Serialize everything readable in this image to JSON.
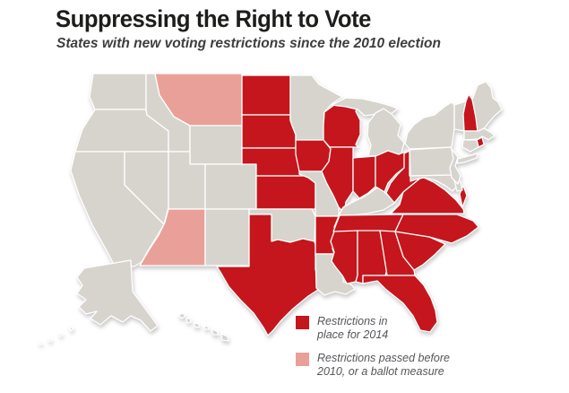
{
  "header": {
    "title": "Suppressing the Right to Vote",
    "subtitle": "States with new voting restrictions since the 2010 election"
  },
  "legend": {
    "items": [
      {
        "status": "restrictions_2014",
        "label_lines": [
          "Restrictions in",
          "place for 2014"
        ]
      },
      {
        "status": "passed_before_2010",
        "label_lines": [
          "Restrictions passed before",
          "2010, or a ballot measure"
        ]
      }
    ]
  },
  "colors": {
    "restrictions_2014": "#c5161d",
    "passed_before_2010": "#e9a098",
    "no_new_restrictions": "#d6d4cd",
    "state_border": "#ffffff",
    "background": "#ffffff",
    "title_text": "#1d1d1b",
    "subtitle_text": "#3e3e40",
    "legend_text": "#55565a"
  },
  "map": {
    "states": {
      "AL": {
        "name": "Alabama",
        "status": "restrictions_2014"
      },
      "AK": {
        "name": "Alaska",
        "status": "no_new_restrictions"
      },
      "AZ": {
        "name": "Arizona",
        "status": "passed_before_2010"
      },
      "AR": {
        "name": "Arkansas",
        "status": "restrictions_2014"
      },
      "CA": {
        "name": "California",
        "status": "no_new_restrictions"
      },
      "CO": {
        "name": "Colorado",
        "status": "no_new_restrictions"
      },
      "CT": {
        "name": "Connecticut",
        "status": "no_new_restrictions"
      },
      "DE": {
        "name": "Delaware",
        "status": "no_new_restrictions"
      },
      "FL": {
        "name": "Florida",
        "status": "restrictions_2014"
      },
      "GA": {
        "name": "Georgia",
        "status": "restrictions_2014"
      },
      "HI": {
        "name": "Hawaii",
        "status": "no_new_restrictions"
      },
      "ID": {
        "name": "Idaho",
        "status": "no_new_restrictions"
      },
      "IL": {
        "name": "Illinois",
        "status": "restrictions_2014"
      },
      "IN": {
        "name": "Indiana",
        "status": "restrictions_2014"
      },
      "IA": {
        "name": "Iowa",
        "status": "restrictions_2014"
      },
      "KS": {
        "name": "Kansas",
        "status": "restrictions_2014"
      },
      "KY": {
        "name": "Kentucky",
        "status": "no_new_restrictions"
      },
      "LA": {
        "name": "Louisiana",
        "status": "no_new_restrictions"
      },
      "ME": {
        "name": "Maine",
        "status": "no_new_restrictions"
      },
      "MD": {
        "name": "Maryland",
        "status": "no_new_restrictions"
      },
      "MA": {
        "name": "Massachusetts",
        "status": "no_new_restrictions"
      },
      "MI": {
        "name": "Michigan",
        "status": "no_new_restrictions"
      },
      "MN": {
        "name": "Minnesota",
        "status": "no_new_restrictions"
      },
      "MS": {
        "name": "Mississippi",
        "status": "restrictions_2014"
      },
      "MO": {
        "name": "Missouri",
        "status": "no_new_restrictions"
      },
      "MT": {
        "name": "Montana",
        "status": "passed_before_2010"
      },
      "NE": {
        "name": "Nebraska",
        "status": "restrictions_2014"
      },
      "NV": {
        "name": "Nevada",
        "status": "no_new_restrictions"
      },
      "NH": {
        "name": "New Hampshire",
        "status": "restrictions_2014"
      },
      "NJ": {
        "name": "New Jersey",
        "status": "no_new_restrictions"
      },
      "NM": {
        "name": "New Mexico",
        "status": "no_new_restrictions"
      },
      "NY": {
        "name": "New York",
        "status": "no_new_restrictions"
      },
      "NC": {
        "name": "North Carolina",
        "status": "restrictions_2014"
      },
      "ND": {
        "name": "North Dakota",
        "status": "restrictions_2014"
      },
      "OH": {
        "name": "Ohio",
        "status": "restrictions_2014"
      },
      "OK": {
        "name": "Oklahoma",
        "status": "no_new_restrictions"
      },
      "OR": {
        "name": "Oregon",
        "status": "no_new_restrictions"
      },
      "PA": {
        "name": "Pennsylvania",
        "status": "no_new_restrictions"
      },
      "RI": {
        "name": "Rhode Island",
        "status": "restrictions_2014"
      },
      "SC": {
        "name": "South Carolina",
        "status": "restrictions_2014"
      },
      "SD": {
        "name": "South Dakota",
        "status": "restrictions_2014"
      },
      "TN": {
        "name": "Tennessee",
        "status": "restrictions_2014"
      },
      "TX": {
        "name": "Texas",
        "status": "restrictions_2014"
      },
      "UT": {
        "name": "Utah",
        "status": "no_new_restrictions"
      },
      "VT": {
        "name": "Vermont",
        "status": "no_new_restrictions"
      },
      "VA": {
        "name": "Virginia",
        "status": "restrictions_2014"
      },
      "WA": {
        "name": "Washington",
        "status": "no_new_restrictions"
      },
      "WV": {
        "name": "West Virginia",
        "status": "restrictions_2014"
      },
      "WI": {
        "name": "Wisconsin",
        "status": "restrictions_2014"
      },
      "WY": {
        "name": "Wyoming",
        "status": "no_new_restrictions"
      }
    }
  }
}
